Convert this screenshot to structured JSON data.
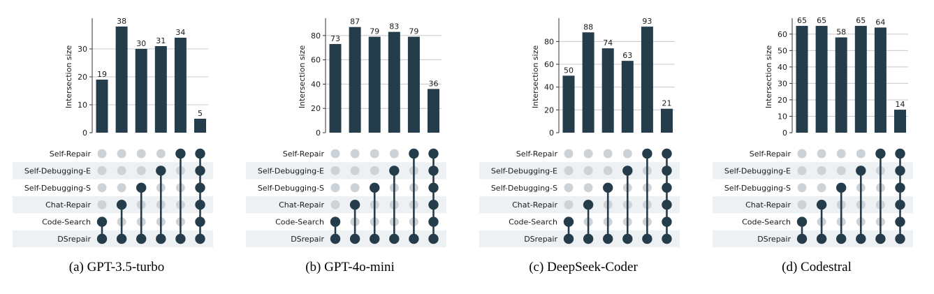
{
  "chart_data": [
    {
      "type": "bar",
      "caption": "(a) GPT-3.5-turbo",
      "ylabel": "Intersection size",
      "ylim": [
        0,
        40
      ],
      "yticks": [
        0,
        10,
        20,
        30
      ],
      "values": [
        19,
        38,
        30,
        31,
        34,
        5
      ],
      "sets": [
        "Self-Repair",
        "Self-Debugging-E",
        "Self-Debugging-S",
        "Chat-Repair",
        "Code-Search",
        "DSrepair"
      ],
      "combinations": [
        [
          "Code-Search",
          "DSrepair"
        ],
        [
          "Chat-Repair",
          "DSrepair"
        ],
        [
          "Self-Debugging-S",
          "DSrepair"
        ],
        [
          "Self-Debugging-E",
          "DSrepair"
        ],
        [
          "Self-Repair",
          "DSrepair"
        ],
        [
          "Self-Repair",
          "Self-Debugging-E",
          "Self-Debugging-S",
          "Chat-Repair",
          "Code-Search",
          "DSrepair"
        ]
      ]
    },
    {
      "type": "bar",
      "caption": "(b) GPT-4o-mini",
      "ylabel": "Intersection size",
      "ylim": [
        0,
        92
      ],
      "yticks": [
        0,
        20,
        40,
        60,
        80
      ],
      "values": [
        73,
        87,
        79,
        83,
        79,
        36
      ],
      "sets": [
        "Self-Repair",
        "Self-Debugging-E",
        "Self-Debugging-S",
        "Chat-Repair",
        "Code-Search",
        "DSrepair"
      ],
      "combinations": [
        [
          "Code-Search",
          "DSrepair"
        ],
        [
          "Chat-Repair",
          "DSrepair"
        ],
        [
          "Self-Debugging-S",
          "DSrepair"
        ],
        [
          "Self-Debugging-E",
          "DSrepair"
        ],
        [
          "Self-Repair",
          "DSrepair"
        ],
        [
          "Self-Repair",
          "Self-Debugging-E",
          "Self-Debugging-S",
          "Chat-Repair",
          "Code-Search",
          "DSrepair"
        ]
      ]
    },
    {
      "type": "bar",
      "caption": "(c) DeepSeek-Coder",
      "ylabel": "Intersection size",
      "ylim": [
        0,
        98
      ],
      "yticks": [
        0,
        20,
        40,
        60,
        80
      ],
      "values": [
        50,
        88,
        74,
        63,
        93,
        21
      ],
      "sets": [
        "Self-Repair",
        "Self-Debugging-E",
        "Self-Debugging-S",
        "Chat-Repair",
        "Code-Search",
        "DSrepair"
      ],
      "combinations": [
        [
          "Code-Search",
          "DSrepair"
        ],
        [
          "Chat-Repair",
          "DSrepair"
        ],
        [
          "Self-Debugging-S",
          "DSrepair"
        ],
        [
          "Self-Debugging-E",
          "DSrepair"
        ],
        [
          "Self-Repair",
          "DSrepair"
        ],
        [
          "Self-Repair",
          "Self-Debugging-E",
          "Self-Debugging-S",
          "Chat-Repair",
          "Code-Search",
          "DSrepair"
        ]
      ]
    },
    {
      "type": "bar",
      "caption": "(d) Codestral",
      "ylabel": "Intersection size",
      "ylim": [
        0,
        68
      ],
      "yticks": [
        0,
        10,
        20,
        30,
        40,
        50,
        60
      ],
      "values": [
        65,
        65,
        58,
        65,
        64,
        14
      ],
      "sets": [
        "Self-Repair",
        "Self-Debugging-E",
        "Self-Debugging-S",
        "Chat-Repair",
        "Code-Search",
        "DSrepair"
      ],
      "combinations": [
        [
          "Code-Search",
          "DSrepair"
        ],
        [
          "Chat-Repair",
          "DSrepair"
        ],
        [
          "Self-Debugging-S",
          "DSrepair"
        ],
        [
          "Self-Debugging-E",
          "DSrepair"
        ],
        [
          "Self-Repair",
          "DSrepair"
        ],
        [
          "Self-Repair",
          "Self-Debugging-E",
          "Self-Debugging-S",
          "Chat-Repair",
          "Code-Search",
          "DSrepair"
        ]
      ]
    }
  ],
  "colors": {
    "bar": "#253d4b",
    "dot_active": "#253d4b",
    "dot_inactive": "#cdd2d6",
    "row_stripe": "#eef1f4",
    "grid": "#c8c8c8"
  }
}
